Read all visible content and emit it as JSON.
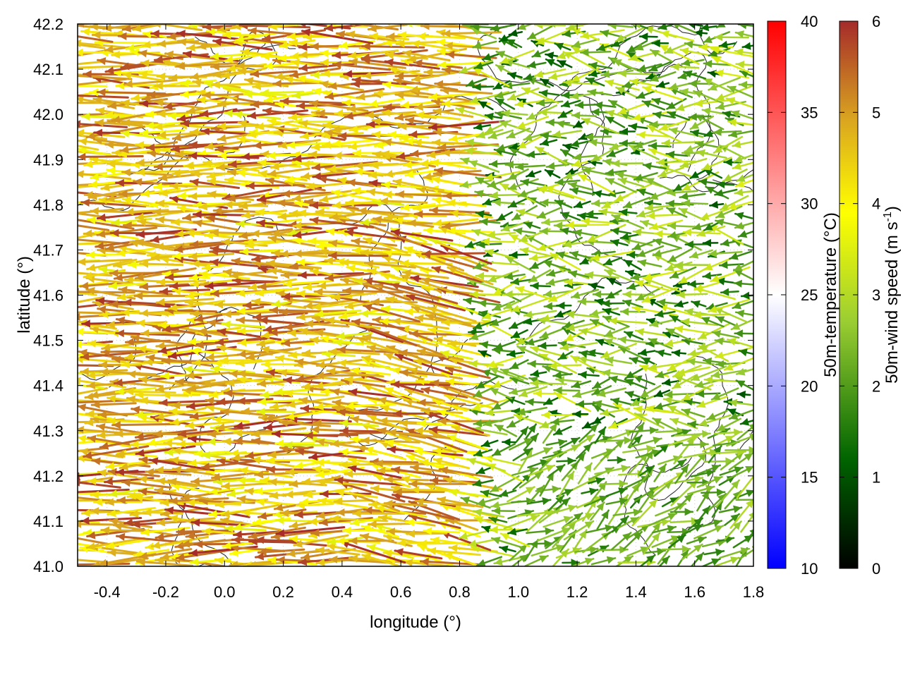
{
  "chart_data": {
    "type": "vector-field",
    "xlabel": "longitude (°)",
    "ylabel": "latitude (°)",
    "xlim": [
      -0.5,
      1.8
    ],
    "ylim": [
      41.0,
      42.2
    ],
    "xticks": [
      -0.4,
      -0.2,
      0.0,
      0.2,
      0.4,
      0.6,
      0.8,
      1.0,
      1.2,
      1.4,
      1.6,
      1.8
    ],
    "xtick_labels": [
      "-0.4",
      "-0.2",
      "0.0",
      "0.2",
      "0.4",
      "0.6",
      "0.8",
      "1.0",
      "1.2",
      "1.4",
      "1.6",
      "1.8"
    ],
    "yticks": [
      41.0,
      41.1,
      41.2,
      41.3,
      41.4,
      41.5,
      41.6,
      41.7,
      41.8,
      41.9,
      42.0,
      42.1,
      42.2
    ],
    "ytick_labels": [
      "41.0",
      "41.1",
      "41.2",
      "41.3",
      "41.4",
      "41.5",
      "41.6",
      "41.7",
      "41.8",
      "41.9",
      "42.0",
      "42.1",
      "42.2"
    ],
    "grid": true,
    "colorbars": [
      {
        "name": "temperature",
        "label": "50m-temperature (°C)",
        "range": [
          10,
          40
        ],
        "ticks": [
          10,
          15,
          20,
          25,
          30,
          35,
          40
        ],
        "tick_labels": [
          "10",
          "15",
          "20",
          "25",
          "30",
          "35",
          "40"
        ],
        "colors": [
          "#0000ff",
          "#ffffff",
          "#ff0000"
        ]
      },
      {
        "name": "wind_speed",
        "label": "50m-wind speed (m s",
        "label_sup": "-1",
        "label_end": ")",
        "range": [
          0,
          6
        ],
        "ticks": [
          0,
          1,
          2,
          3,
          4,
          5,
          6
        ],
        "tick_labels": [
          "0",
          "1",
          "2",
          "3",
          "4",
          "5",
          "6"
        ],
        "colors": [
          "#000000",
          "#006400",
          "#9acd32",
          "#ffff00",
          "#daa520",
          "#a52a2a"
        ]
      }
    ],
    "wind_regions": [
      {
        "region": "west (lon -0.5 to 0.8)",
        "direction_deg_from_east": 180,
        "speed_range": [
          4,
          6
        ],
        "dominant": "westward, strong (brown/orange/yellow)"
      },
      {
        "region": "northeast (lon 0.8 to 1.8, lat 41.7 to 42.2)",
        "direction_deg_from_east": 180,
        "speed_range": [
          1,
          3.5
        ],
        "dominant": "westward, weak (green)"
      },
      {
        "region": "southeast (lon 1.0 to 1.8, lat 41.0 to 41.3)",
        "direction_deg_from_east": 30,
        "speed_range": [
          1.5,
          3
        ],
        "dominant": "northeastward/eastward, weak (green)"
      }
    ],
    "contours": "terrain elevation contours (dark gray lines), no labels"
  }
}
